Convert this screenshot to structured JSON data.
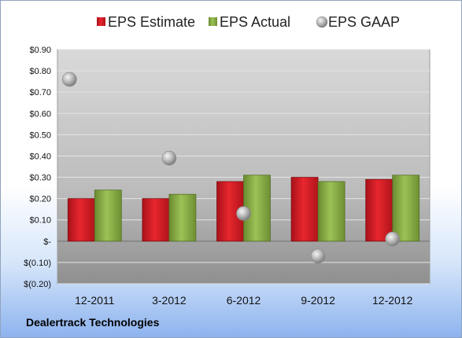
{
  "company": "Dealertrack Technologies",
  "colors": {
    "estimate": "#d81e25",
    "actual": "#8db04a",
    "gaap": "#c8c8c8"
  },
  "chart_data": {
    "type": "bar",
    "categories": [
      "12-2011",
      "3-2012",
      "6-2012",
      "9-2012",
      "12-2012"
    ],
    "series": [
      {
        "name": "EPS Estimate",
        "kind": "bar",
        "values": [
          0.2,
          0.2,
          0.28,
          0.3,
          0.29
        ]
      },
      {
        "name": "EPS Actual",
        "kind": "bar",
        "values": [
          0.24,
          0.22,
          0.31,
          0.28,
          0.31
        ]
      },
      {
        "name": "EPS GAAP",
        "kind": "scatter",
        "values": [
          0.76,
          0.39,
          0.13,
          -0.07,
          0.01
        ]
      }
    ],
    "y_ticks": [
      {
        "value": 0.9,
        "label": "$0.90"
      },
      {
        "value": 0.8,
        "label": "$0.80"
      },
      {
        "value": 0.7,
        "label": "$0.70"
      },
      {
        "value": 0.6,
        "label": "$0.60"
      },
      {
        "value": 0.5,
        "label": "$0.50"
      },
      {
        "value": 0.4,
        "label": "$0.40"
      },
      {
        "value": 0.3,
        "label": "$0.30"
      },
      {
        "value": 0.2,
        "label": "$0.20"
      },
      {
        "value": 0.1,
        "label": "$0.10"
      },
      {
        "value": 0,
        "label": "$-"
      },
      {
        "value": -0.1,
        "label": "$(0.10)"
      },
      {
        "value": -0.2,
        "label": "$(0.20)"
      }
    ],
    "ylim": [
      -0.2,
      0.9
    ],
    "grid": true,
    "legend": "top"
  }
}
